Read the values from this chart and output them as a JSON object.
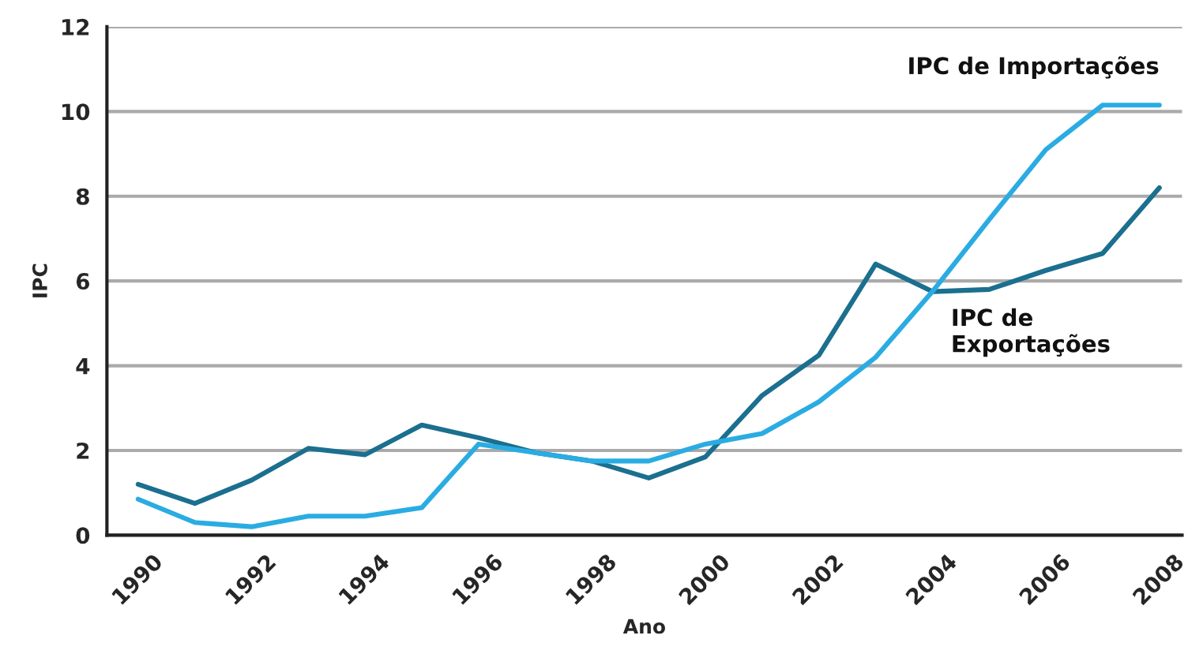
{
  "chart_data": {
    "type": "line",
    "xlabel": "Ano",
    "ylabel": "IPC",
    "x": [
      1990,
      1991,
      1992,
      1993,
      1994,
      1995,
      1996,
      1997,
      1998,
      1999,
      2000,
      2001,
      2002,
      2003,
      2004,
      2005,
      2006,
      2007,
      2008
    ],
    "series": [
      {
        "name": "IPC de\nExportações",
        "color": "#1b6f8f",
        "values": [
          1.2,
          0.75,
          1.3,
          2.05,
          1.9,
          2.6,
          2.3,
          1.95,
          1.75,
          1.35,
          1.85,
          3.3,
          4.25,
          6.4,
          5.75,
          5.8,
          6.25,
          6.65,
          8.2
        ]
      },
      {
        "name": "IPC de Importações",
        "color": "#2aace2",
        "values": [
          0.85,
          0.3,
          0.2,
          0.45,
          0.45,
          0.65,
          2.15,
          1.95,
          1.75,
          1.75,
          2.15,
          2.4,
          3.15,
          4.2,
          5.75,
          7.45,
          9.1,
          10.15,
          10.15
        ]
      }
    ],
    "xlim": [
      1989.45,
      2008.4
    ],
    "xticks": [
      1990,
      1992,
      1994,
      1996,
      1998,
      2000,
      2002,
      2004,
      2006,
      2008
    ],
    "ylim": [
      0,
      12
    ],
    "yticks": [
      0,
      2,
      4,
      6,
      8,
      10,
      12
    ],
    "grid": "y",
    "legend": false,
    "marker": "none",
    "line_style": "solid"
  }
}
